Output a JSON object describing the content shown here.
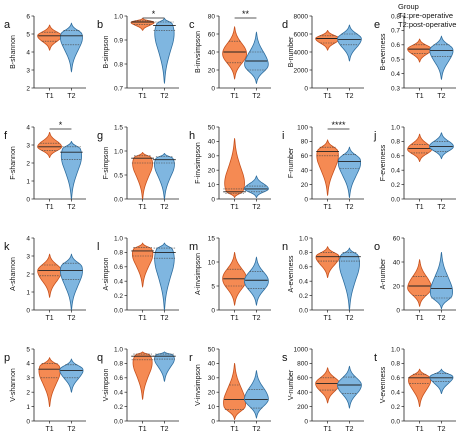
{
  "legend": {
    "title": "Group",
    "items": [
      "T1:pre-operative",
      "T2:post-operative"
    ]
  },
  "colors": {
    "T1": "#f58a53",
    "T2": "#7fb6e0",
    "outline_T1": "#c7501c",
    "outline_T2": "#2f6e9f"
  },
  "chart_data": [
    {
      "type": "violin",
      "panel": "a",
      "ylabel": "B-shannon",
      "categories": [
        "T1",
        "T2"
      ],
      "ylim": [
        2,
        6
      ],
      "yticks": [
        2,
        3,
        4,
        5,
        6
      ],
      "series": [
        {
          "name": "T1",
          "min": 4.1,
          "q1": 4.6,
          "median": 4.9,
          "q3": 5.1,
          "max": 5.5,
          "peak": 4.9
        },
        {
          "name": "T2",
          "min": 2.9,
          "q1": 4.4,
          "median": 4.9,
          "q3": 5.2,
          "max": 5.6,
          "peak": 5.0
        }
      ]
    },
    {
      "type": "violin",
      "panel": "b",
      "ylabel": "B-simpson",
      "categories": [
        "T1",
        "T2"
      ],
      "ylim": [
        0.7,
        1.0
      ],
      "yticks": [
        0.7,
        0.8,
        0.9,
        1.0
      ],
      "significance": "*",
      "series": [
        {
          "name": "T1",
          "min": 0.94,
          "q1": 0.965,
          "median": 0.975,
          "q3": 0.98,
          "max": 0.99,
          "peak": 0.975
        },
        {
          "name": "T2",
          "min": 0.72,
          "q1": 0.94,
          "median": 0.96,
          "q3": 0.975,
          "max": 0.99,
          "peak": 0.97
        }
      ]
    },
    {
      "type": "violin",
      "panel": "c",
      "ylabel": "B-invsimpson",
      "categories": [
        "T1",
        "T2"
      ],
      "ylim": [
        0,
        80
      ],
      "yticks": [
        0,
        20,
        40,
        60,
        80
      ],
      "significance": "**",
      "series": [
        {
          "name": "T1",
          "min": 10,
          "q1": 28,
          "median": 40,
          "q3": 52,
          "max": 68,
          "peak": 38
        },
        {
          "name": "T2",
          "min": 5,
          "q1": 20,
          "median": 30,
          "q3": 40,
          "max": 62,
          "peak": 25
        }
      ]
    },
    {
      "type": "violin",
      "panel": "d",
      "ylabel": "B-number",
      "categories": [
        "T1",
        "T2"
      ],
      "ylim": [
        0,
        8000
      ],
      "yticks": [
        0,
        2000,
        4000,
        6000,
        8000
      ],
      "series": [
        {
          "name": "T1",
          "min": 4200,
          "q1": 5000,
          "median": 5500,
          "q3": 5800,
          "max": 6400,
          "peak": 5500
        },
        {
          "name": "T2",
          "min": 3000,
          "q1": 4800,
          "median": 5400,
          "q3": 6000,
          "max": 7000,
          "peak": 5500
        }
      ]
    },
    {
      "type": "violin",
      "panel": "e",
      "ylabel": "B-evenness",
      "categories": [
        "T1",
        "T2"
      ],
      "ylim": [
        0.3,
        0.8
      ],
      "yticks": [
        0.3,
        0.4,
        0.5,
        0.6,
        0.7,
        0.8
      ],
      "series": [
        {
          "name": "T1",
          "min": 0.48,
          "q1": 0.54,
          "median": 0.57,
          "q3": 0.6,
          "max": 0.64,
          "peak": 0.57
        },
        {
          "name": "T2",
          "min": 0.36,
          "q1": 0.52,
          "median": 0.56,
          "q3": 0.6,
          "max": 0.66,
          "peak": 0.57
        }
      ]
    },
    {
      "type": "violin",
      "panel": "f",
      "ylabel": "F-shannon",
      "categories": [
        "T1",
        "T2"
      ],
      "ylim": [
        0,
        4
      ],
      "yticks": [
        0,
        1,
        2,
        3,
        4
      ],
      "significance": "*",
      "series": [
        {
          "name": "T1",
          "min": 2.3,
          "q1": 2.7,
          "median": 2.9,
          "q3": 3.1,
          "max": 3.7,
          "peak": 2.9
        },
        {
          "name": "T2",
          "min": 0.0,
          "q1": 2.2,
          "median": 2.6,
          "q3": 2.9,
          "max": 3.2,
          "peak": 2.8
        }
      ]
    },
    {
      "type": "violin",
      "panel": "g",
      "ylabel": "F-simpson",
      "categories": [
        "T1",
        "T2"
      ],
      "ylim": [
        0,
        1.5
      ],
      "yticks": [
        0.0,
        0.5,
        1.0,
        1.5
      ],
      "series": [
        {
          "name": "T1",
          "min": 0.0,
          "q1": 0.75,
          "median": 0.85,
          "q3": 0.9,
          "max": 0.97,
          "peak": 0.87
        },
        {
          "name": "T2",
          "min": 0.0,
          "q1": 0.75,
          "median": 0.82,
          "q3": 0.88,
          "max": 0.95,
          "peak": 0.85
        }
      ]
    },
    {
      "type": "violin",
      "panel": "h",
      "ylabel": "F-invsimpson",
      "categories": [
        "T1",
        "T2"
      ],
      "ylim": [
        0,
        50
      ],
      "yticks": [
        0,
        10,
        20,
        30,
        40,
        50
      ],
      "series": [
        {
          "name": "T1",
          "min": 1,
          "q1": 4,
          "median": 5,
          "q3": 7,
          "max": 42,
          "peak": 5
        },
        {
          "name": "T2",
          "min": 1,
          "q1": 5,
          "median": 7,
          "q3": 9,
          "max": 16,
          "peak": 7
        }
      ]
    },
    {
      "type": "violin",
      "panel": "i",
      "ylabel": "F-number",
      "categories": [
        "T1",
        "T2"
      ],
      "ylim": [
        0,
        100
      ],
      "yticks": [
        0,
        20,
        40,
        60,
        80,
        100
      ],
      "significance": "****",
      "series": [
        {
          "name": "T1",
          "min": 5,
          "q1": 60,
          "median": 66,
          "q3": 72,
          "max": 82,
          "peak": 67
        },
        {
          "name": "T2",
          "min": 2,
          "q1": 42,
          "median": 52,
          "q3": 62,
          "max": 72,
          "peak": 55
        }
      ]
    },
    {
      "type": "violin",
      "panel": "j",
      "ylabel": "F-evenness",
      "categories": [
        "T1",
        "T2"
      ],
      "ylim": [
        0.0,
        1.0
      ],
      "yticks": [
        0.0,
        0.2,
        0.4,
        0.6,
        0.8,
        1.0
      ],
      "series": [
        {
          "name": "T1",
          "min": 0.52,
          "q1": 0.64,
          "median": 0.7,
          "q3": 0.76,
          "max": 0.9,
          "peak": 0.69
        },
        {
          "name": "T2",
          "min": 0.56,
          "q1": 0.66,
          "median": 0.73,
          "q3": 0.8,
          "max": 0.92,
          "peak": 0.73
        }
      ]
    },
    {
      "type": "violin",
      "panel": "k",
      "ylabel": "A-shannon",
      "categories": [
        "T1",
        "T2"
      ],
      "ylim": [
        0,
        4
      ],
      "yticks": [
        0,
        1,
        2,
        3,
        4
      ],
      "series": [
        {
          "name": "T1",
          "min": 0.7,
          "q1": 1.9,
          "median": 2.2,
          "q3": 2.5,
          "max": 3.1,
          "peak": 2.2
        },
        {
          "name": "T2",
          "min": 0.0,
          "q1": 1.7,
          "median": 2.2,
          "q3": 2.6,
          "max": 3.1,
          "peak": 2.4
        }
      ]
    },
    {
      "type": "violin",
      "panel": "l",
      "ylabel": "A-simpson",
      "categories": [
        "T1",
        "T2"
      ],
      "ylim": [
        0,
        1.0
      ],
      "yticks": [
        0.0,
        0.2,
        0.4,
        0.6,
        0.8,
        1.0
      ],
      "series": [
        {
          "name": "T1",
          "min": 0.32,
          "q1": 0.75,
          "median": 0.82,
          "q3": 0.87,
          "max": 0.93,
          "peak": 0.85
        },
        {
          "name": "T2",
          "min": 0.0,
          "q1": 0.72,
          "median": 0.8,
          "q3": 0.86,
          "max": 0.93,
          "peak": 0.85
        }
      ]
    },
    {
      "type": "violin",
      "panel": "m",
      "ylabel": "A-invsimpson",
      "categories": [
        "T1",
        "T2"
      ],
      "ylim": [
        0,
        15
      ],
      "yticks": [
        0,
        5,
        10,
        15
      ],
      "series": [
        {
          "name": "T1",
          "min": 1,
          "q1": 5,
          "median": 6.5,
          "q3": 8.5,
          "max": 12,
          "peak": 6.5
        },
        {
          "name": "T2",
          "min": 1,
          "q1": 4.5,
          "median": 6.2,
          "q3": 8,
          "max": 11,
          "peak": 6
        }
      ]
    },
    {
      "type": "violin",
      "panel": "n",
      "ylabel": "A-evenness",
      "categories": [
        "T1",
        "T2"
      ],
      "ylim": [
        0.0,
        1.0
      ],
      "yticks": [
        0.0,
        0.2,
        0.4,
        0.6,
        0.8,
        1.0
      ],
      "series": [
        {
          "name": "T1",
          "min": 0.45,
          "q1": 0.68,
          "median": 0.74,
          "q3": 0.8,
          "max": 0.88,
          "peak": 0.75
        },
        {
          "name": "T2",
          "min": 0.0,
          "q1": 0.68,
          "median": 0.74,
          "q3": 0.8,
          "max": 0.86,
          "peak": 0.76
        }
      ]
    },
    {
      "type": "violin",
      "panel": "o",
      "ylabel": "A-number",
      "categories": [
        "T1",
        "T2"
      ],
      "ylim": [
        0,
        60
      ],
      "yticks": [
        0,
        20,
        40,
        60
      ],
      "series": [
        {
          "name": "T1",
          "min": 3,
          "q1": 12,
          "median": 20,
          "q3": 28,
          "max": 42,
          "peak": 18
        },
        {
          "name": "T2",
          "min": 1,
          "q1": 10,
          "median": 18,
          "q3": 28,
          "max": 48,
          "peak": 12
        }
      ]
    },
    {
      "type": "violin",
      "panel": "p",
      "ylabel": "V-shannon",
      "categories": [
        "T1",
        "T2"
      ],
      "ylim": [
        0,
        5
      ],
      "yticks": [
        0,
        1,
        2,
        3,
        4,
        5
      ],
      "series": [
        {
          "name": "T1",
          "min": 1.0,
          "q1": 3.0,
          "median": 3.6,
          "q3": 4.0,
          "max": 4.4,
          "peak": 3.8
        },
        {
          "name": "T2",
          "min": 2.0,
          "q1": 3.0,
          "median": 3.5,
          "q3": 3.9,
          "max": 4.3,
          "peak": 3.6
        }
      ]
    },
    {
      "type": "violin",
      "panel": "q",
      "ylabel": "V-simpson",
      "categories": [
        "T1",
        "T2"
      ],
      "ylim": [
        0.0,
        1.0
      ],
      "yticks": [
        0.0,
        0.2,
        0.4,
        0.6,
        0.8,
        1.0
      ],
      "series": [
        {
          "name": "T1",
          "min": 0.3,
          "q1": 0.85,
          "median": 0.9,
          "q3": 0.93,
          "max": 0.96,
          "peak": 0.92
        },
        {
          "name": "T2",
          "min": 0.55,
          "q1": 0.86,
          "median": 0.9,
          "q3": 0.93,
          "max": 0.96,
          "peak": 0.92
        }
      ]
    },
    {
      "type": "violin",
      "panel": "r",
      "ylabel": "V-invsimpson",
      "categories": [
        "T1",
        "T2"
      ],
      "ylim": [
        0,
        50
      ],
      "yticks": [
        0,
        10,
        20,
        30,
        40,
        50
      ],
      "series": [
        {
          "name": "T1",
          "min": 1,
          "q1": 8,
          "median": 15,
          "q3": 25,
          "max": 40,
          "peak": 10
        },
        {
          "name": "T2",
          "min": 2,
          "q1": 9,
          "median": 15,
          "q3": 22,
          "max": 35,
          "peak": 15
        }
      ]
    },
    {
      "type": "violin",
      "panel": "s",
      "ylabel": "V-number",
      "categories": [
        "T1",
        "T2"
      ],
      "ylim": [
        0,
        1000
      ],
      "yticks": [
        0,
        200,
        400,
        600,
        800,
        1000
      ],
      "series": [
        {
          "name": "T1",
          "min": 250,
          "q1": 430,
          "median": 520,
          "q3": 600,
          "max": 740,
          "peak": 520
        },
        {
          "name": "T2",
          "min": 180,
          "q1": 380,
          "median": 500,
          "q3": 610,
          "max": 760,
          "peak": 500
        }
      ]
    },
    {
      "type": "violin",
      "panel": "t",
      "ylabel": "V-evenness",
      "categories": [
        "T1",
        "T2"
      ],
      "ylim": [
        0.0,
        1.0
      ],
      "yticks": [
        0.0,
        0.2,
        0.4,
        0.6,
        0.8,
        1.0
      ],
      "series": [
        {
          "name": "T1",
          "min": 0.2,
          "q1": 0.52,
          "median": 0.6,
          "q3": 0.65,
          "max": 0.72,
          "peak": 0.6
        },
        {
          "name": "T2",
          "min": 0.38,
          "q1": 0.55,
          "median": 0.6,
          "q3": 0.66,
          "max": 0.72,
          "peak": 0.62
        }
      ]
    }
  ]
}
